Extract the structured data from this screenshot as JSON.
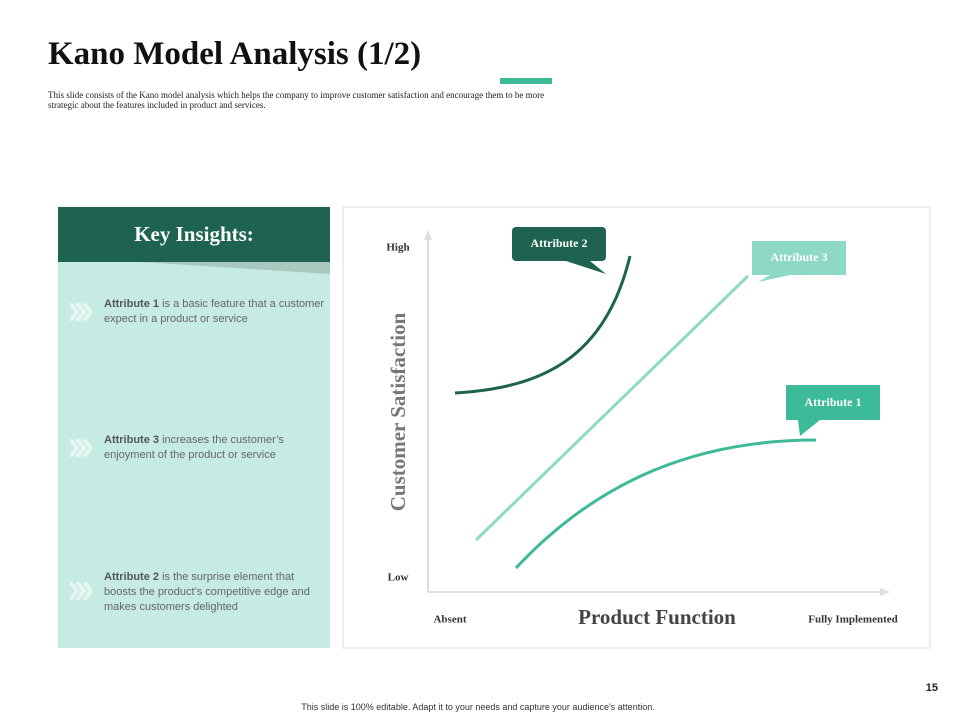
{
  "header": {
    "title": "Kano Model Analysis (1/2)",
    "subtitle": "This slide consists of the Kano model analysis which helps the company to improve customer satisfaction and encourage them to be more strategic about the features included in product and services."
  },
  "insights": {
    "title": "Key Insights:",
    "items": [
      {
        "label": "Attribute 1",
        "text": "is a basic feature that a customer expect in a product or service"
      },
      {
        "label": "Attribute 3",
        "text": "increases the customer’s enjoyment of the product or service"
      },
      {
        "label": "Attribute 2",
        "text": "is the surprise element that boosts the product’s competitive edge and makes customers delighted"
      }
    ]
  },
  "diagram": {
    "y_axis": "Customer Satisfaction",
    "y_high": "High",
    "y_low": "Low",
    "x_axis": "Product Function",
    "x_low": "Absent",
    "x_high": "Fully Implemented",
    "callouts": [
      "Attribute 2",
      "Attribute 3",
      "Attribute 1"
    ]
  },
  "page_number": "15",
  "footer": "This slide is 100% editable. Adapt it to your needs and capture your audience's attention."
}
